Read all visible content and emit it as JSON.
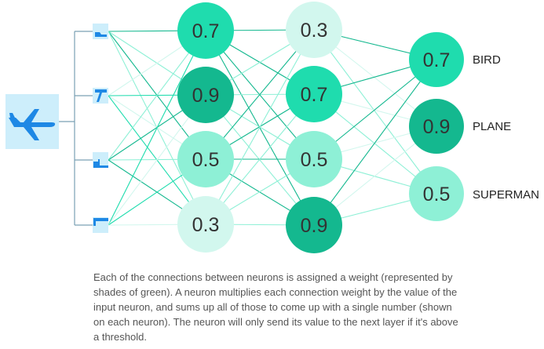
{
  "input_icon": "airplane-icon",
  "layer1": [
    "0.7",
    "0.9",
    "0.5",
    "0.3"
  ],
  "layer2": [
    "0.3",
    "0.7",
    "0.5",
    "0.9"
  ],
  "outputs": [
    {
      "value": "0.7",
      "label": "BIRD"
    },
    {
      "value": "0.9",
      "label": "PLANE"
    },
    {
      "value": "0.5",
      "label": "SUPERMAN"
    }
  ],
  "caption": "Each of the connections between neurons is assigned a weight (represented by shades of green). A neuron multiplies each connection weight by the value of the input neuron, and sums up all of those to come up with a single number (shown on each neuron). The neuron will only send its value to the next layer if it's above a threshold.",
  "colors": {
    "input_bg": "#cdeefb",
    "plane_blue": "#1e88e5",
    "shade_0.3": "#d2f7ee",
    "shade_0.5": "#8ef0d6",
    "shade_0.7": "#1fdcae",
    "shade_0.9": "#14b88f",
    "bracket": "#7aa0b3",
    "text": "#222222"
  }
}
